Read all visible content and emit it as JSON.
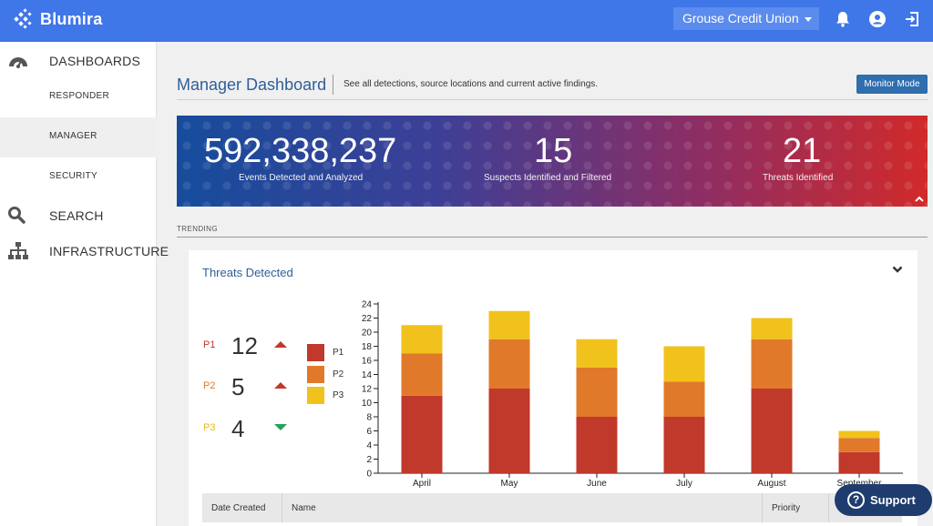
{
  "app": {
    "name": "Blumira",
    "brand_color": "#3f76e8"
  },
  "topbar": {
    "org_select": {
      "value": "Grouse Credit Union"
    },
    "icons": [
      "bell-icon",
      "user-icon",
      "logout-icon"
    ]
  },
  "sidebar": {
    "dashboards_label": "DASHBOARDS",
    "responder_label": "RESPONDER",
    "manager_label": "MANAGER",
    "security_label": "SECURITY",
    "search_label": "SEARCH",
    "infrastructure_label": "INFRASTRUCTURE",
    "active_item": "MANAGER"
  },
  "page": {
    "title": "Manager Dashboard",
    "description": "See all detections, source locations and current active findings.",
    "monitor_button": "Monitor Mode"
  },
  "banner": {
    "events_value": "592,338,237",
    "events_label": "Events Detected and Analyzed",
    "suspects_value": "15",
    "suspects_label": "Suspects Identified and Filtered",
    "threats_value": "21",
    "threats_label": "Threats Identified"
  },
  "trending": {
    "label": "TRENDING"
  },
  "threats_card": {
    "title": "Threats Detected",
    "priorities": [
      {
        "tag": "P1",
        "count": "12",
        "trend": "up",
        "color": "#c0392b"
      },
      {
        "tag": "P2",
        "count": "5",
        "trend": "up",
        "color": "#e07a2a"
      },
      {
        "tag": "P3",
        "count": "4",
        "trend": "down",
        "color": "#e8b917"
      }
    ],
    "legend": [
      {
        "label": "P1",
        "color": "#c0392b"
      },
      {
        "label": "P2",
        "color": "#e07a2a"
      },
      {
        "label": "P3",
        "color": "#f1c21b"
      }
    ]
  },
  "chart_data": {
    "type": "bar",
    "stacked": true,
    "categories": [
      "April",
      "May",
      "June",
      "July",
      "August",
      "September"
    ],
    "series": [
      {
        "name": "P1",
        "values": [
          11,
          12,
          8,
          8,
          12,
          3
        ],
        "color": "#c0392b"
      },
      {
        "name": "P2",
        "values": [
          6,
          7,
          7,
          5,
          7,
          2
        ],
        "color": "#e07a2a"
      },
      {
        "name": "P3",
        "values": [
          4,
          4,
          4,
          5,
          3,
          1
        ],
        "color": "#f1c21b"
      }
    ],
    "yticks": [
      "0",
      "2",
      "4",
      "6",
      "8",
      "10",
      "12",
      "14",
      "16",
      "18",
      "20",
      "22",
      "24"
    ],
    "ylim": [
      0,
      24
    ],
    "grid": false
  },
  "table": {
    "columns": [
      "Date Created",
      "Name",
      "Priority"
    ]
  },
  "support": {
    "label": "Support"
  }
}
